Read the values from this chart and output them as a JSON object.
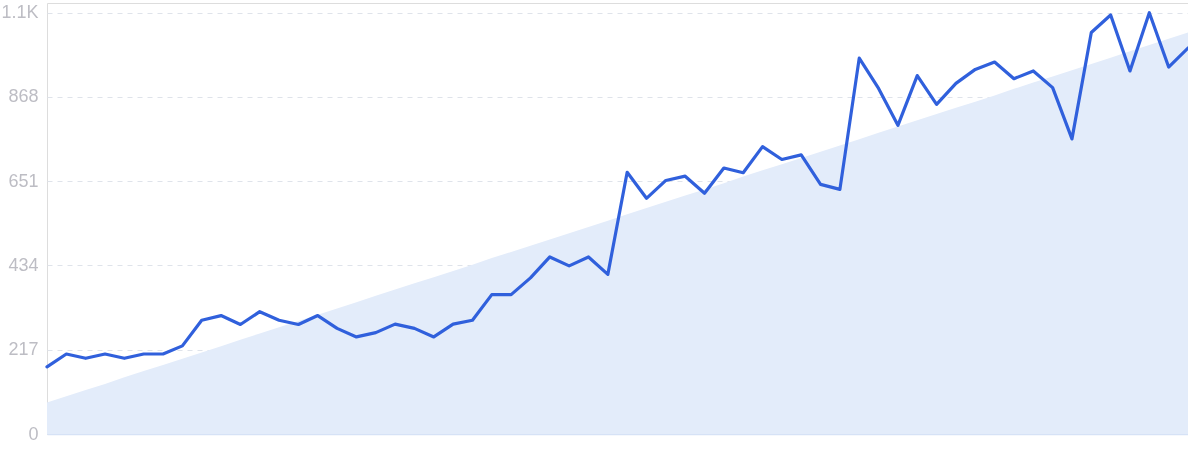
{
  "chart_data": {
    "type": "line",
    "categories": [
      null,
      null,
      null,
      null,
      null,
      null,
      null,
      null,
      null,
      null,
      null,
      null,
      null,
      null,
      null,
      null,
      null,
      null,
      null,
      null,
      null,
      null,
      null,
      null,
      null,
      null,
      null,
      null,
      null,
      null,
      null,
      null,
      null,
      null,
      null,
      null,
      null,
      null,
      null,
      null,
      null,
      null,
      null,
      null,
      null,
      null,
      null,
      null,
      null,
      null,
      null,
      null,
      null,
      null,
      null,
      null,
      null,
      null,
      null,
      null
    ],
    "ylim": [
      0,
      1110
    ],
    "yticks": [
      0,
      217,
      434,
      651,
      868,
      {
        "value": 1085,
        "label": "1.1K"
      }
    ],
    "grid": "y",
    "tick_labels": "y",
    "series": [
      {
        "type": "area",
        "color": "#e3ecfa",
        "values": [
          81,
          97,
          113,
          129,
          146,
          162,
          178,
          194,
          210,
          226,
          243,
          259,
          275,
          291,
          307,
          323,
          339,
          356,
          372,
          388,
          404,
          420,
          436,
          453,
          469,
          485,
          501,
          517,
          533,
          549,
          566,
          582,
          598,
          614,
          630,
          646,
          663,
          679,
          695,
          711,
          727,
          743,
          759,
          776,
          792,
          808,
          824,
          840,
          856,
          872,
          889,
          905,
          921,
          937,
          953,
          969,
          986,
          1002,
          1018,
          1034
        ]
      },
      {
        "color": "#3060dc",
        "values": [
          173,
          206,
          195,
          206,
          195,
          206,
          206,
          227,
          293,
          305,
          282,
          315,
          293,
          282,
          305,
          272,
          250,
          261,
          283,
          272,
          250,
          283,
          293,
          359,
          359,
          402,
          456,
          433,
          456,
          411,
          674,
          607,
          653,
          664,
          620,
          685,
          673,
          740,
          707,
          719,
          643,
          630,
          968,
          890,
          795,
          923,
          849,
          903,
          939,
          958,
          915,
          935,
          892,
          760,
          1034,
          1079,
          935,
          1085,
          945,
          994
        ]
      }
    ]
  }
}
